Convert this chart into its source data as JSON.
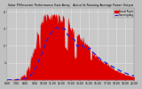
{
  "title": "Solar PV/Inverter Performance East Array   Actual & Running Average Power Output",
  "bg_color": "#c0c0c0",
  "plot_bg_color": "#c8c8c8",
  "grid_color": "#ffffff",
  "bar_color": "#dd0000",
  "avg_line_color": "#2222dd",
  "text_color": "#000000",
  "title_color": "#000000",
  "legend_actual_label": "Actual Power",
  "legend_avg_label": "Running Avg",
  "legend_actual_color": "#dd0000",
  "legend_avg_color": "#2222dd",
  "n_points": 200,
  "peak_index": 62,
  "ylim_max": 1.05,
  "x_labels": [
    "6:00",
    "7:00",
    "8:00",
    "9:00",
    "10:00",
    "11:00",
    "12:00",
    "13:00",
    "14:00",
    "15:00",
    "16:00",
    "17:00",
    "18:00",
    "19:00",
    "20:00"
  ],
  "y_labels": [
    "1",
    "2",
    "3",
    "4"
  ],
  "n_xticks": 15,
  "n_yticks": 4
}
